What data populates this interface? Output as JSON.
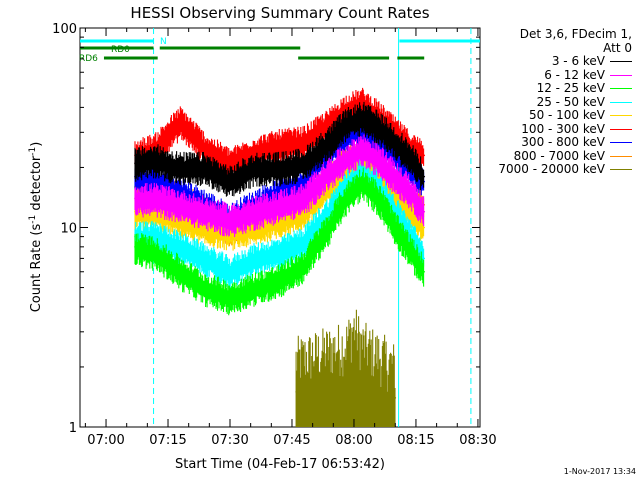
{
  "chart_data": {
    "type": "line",
    "title": "HESSI Observing Summary Count Rates",
    "xlabel": "Start Time (04-Feb-17 06:53:42)",
    "ylabel": "Count Rate (s",
    "ylabel_sup": "-1",
    "ylabel_mid": " detector",
    "ylabel_sup2": "-1",
    "ylabel_end": ")",
    "x_ticks": [
      "07:00",
      "07:15",
      "07:30",
      "07:45",
      "08:00",
      "08:15",
      "08:30"
    ],
    "x_tick_minutes": [
      0,
      15,
      30,
      45,
      60,
      75,
      90
    ],
    "x_range_minutes": [
      -6.3,
      90.5
    ],
    "y_scale": "log",
    "ylim": [
      1,
      100
    ],
    "y_ticks": [
      "1",
      "10",
      "100"
    ],
    "legend_header": [
      "Det 3,6, FDecim 1,",
      "Att 0"
    ],
    "series": [
      {
        "name": "3 - 6 keV",
        "color": "#000000",
        "x": [
          7,
          12,
          18,
          24,
          30,
          36,
          42,
          48,
          54,
          58,
          62,
          66,
          70,
          74,
          77
        ],
        "y": [
          21,
          22,
          20,
          20,
          17,
          20,
          20,
          21,
          27,
          33,
          36,
          32,
          27,
          22,
          18
        ]
      },
      {
        "name": "6 - 12 keV",
        "color": "#ff00ff",
        "x": [
          7,
          12,
          18,
          24,
          30,
          36,
          42,
          48,
          54,
          58,
          62,
          66,
          70,
          74,
          77
        ],
        "y": [
          14,
          14,
          13,
          12,
          11,
          12,
          13,
          14,
          19,
          22,
          25,
          22,
          18,
          15,
          12
        ]
      },
      {
        "name": "12 - 25 keV",
        "color": "#00ff00",
        "x": [
          7,
          12,
          18,
          24,
          30,
          36,
          42,
          48,
          54,
          58,
          62,
          66,
          70,
          74,
          77
        ],
        "y": [
          8,
          7.5,
          6,
          5,
          4.5,
          5,
          5.5,
          6.5,
          10,
          14,
          17,
          14,
          10,
          7.5,
          6
        ]
      },
      {
        "name": "25 - 50 keV",
        "color": "#00ffff",
        "x": [
          7,
          12,
          18,
          24,
          30,
          36,
          42,
          48,
          54,
          58,
          62,
          66,
          70,
          74,
          77
        ],
        "y": [
          9,
          9,
          8,
          7,
          6,
          7,
          7.5,
          8.5,
          12,
          16,
          19,
          16,
          12,
          9,
          7
        ]
      },
      {
        "name": "50 - 100 keV",
        "color": "#ffd700",
        "x": [
          7,
          12,
          18,
          24,
          30,
          36,
          42,
          48,
          54,
          58,
          62,
          66,
          70,
          74,
          77
        ],
        "y": [
          12,
          12,
          11,
          10,
          9.5,
          10,
          11,
          12,
          16,
          19,
          22,
          19,
          15,
          12,
          10
        ]
      },
      {
        "name": "100 - 300 keV",
        "color": "#ff0000",
        "x": [
          7,
          12,
          18,
          24,
          30,
          36,
          42,
          48,
          54,
          58,
          62,
          66,
          70,
          74,
          77
        ],
        "y": [
          23,
          25,
          34,
          25,
          21,
          24,
          26,
          27,
          33,
          39,
          42,
          36,
          30,
          25,
          23
        ]
      },
      {
        "name": "300 - 800 keV",
        "color": "#0000ff",
        "x": [
          7,
          12,
          18,
          24,
          30,
          36,
          42,
          48,
          54,
          58,
          62,
          66,
          70,
          74,
          77
        ],
        "y": [
          18,
          17,
          15,
          13,
          11,
          13,
          15,
          17,
          24,
          29,
          31,
          27,
          23,
          20,
          17
        ]
      },
      {
        "name": "800 - 7000 keV",
        "color": "#ff8c00",
        "x": [
          7,
          12,
          18,
          24,
          30,
          36,
          42,
          48,
          54,
          58,
          62,
          66,
          70,
          74,
          77
        ],
        "y": [
          16,
          16,
          14,
          12,
          10,
          11,
          12,
          13,
          18,
          22,
          24,
          21,
          17,
          14,
          13
        ]
      },
      {
        "name": "7000 - 20000 keV",
        "color": "#808000",
        "x": [
          46,
          50,
          54,
          58,
          60,
          62,
          66,
          70
        ],
        "y": [
          1.5,
          1.6,
          1.7,
          1.8,
          2.2,
          1.8,
          1.6,
          1.4
        ]
      }
    ],
    "flags": [
      {
        "label": "N",
        "color": "#00ffff",
        "segments": [
          [
            -6.3,
            11.5
          ],
          [
            71,
            90.5
          ]
        ]
      },
      {
        "label": "RD0",
        "color": "#008000",
        "segments": [
          [
            -6.3,
            11.5
          ],
          [
            13,
            47
          ]
        ]
      },
      {
        "label": "RD6",
        "color": "#008000",
        "segments": [
          [
            -0.5,
            12.5
          ],
          [
            46.5,
            68.5
          ],
          [
            70.5,
            77
          ]
        ]
      }
    ],
    "vlines": [
      {
        "x": 11.5,
        "color": "#00ffff",
        "style": "dashed"
      },
      {
        "x": 70.8,
        "color": "#00ffff",
        "style": "solid"
      },
      {
        "x": 88.3,
        "color": "#00ffff",
        "style": "dashed"
      }
    ]
  },
  "footer_stamp": "1-Nov-2017 13:34"
}
